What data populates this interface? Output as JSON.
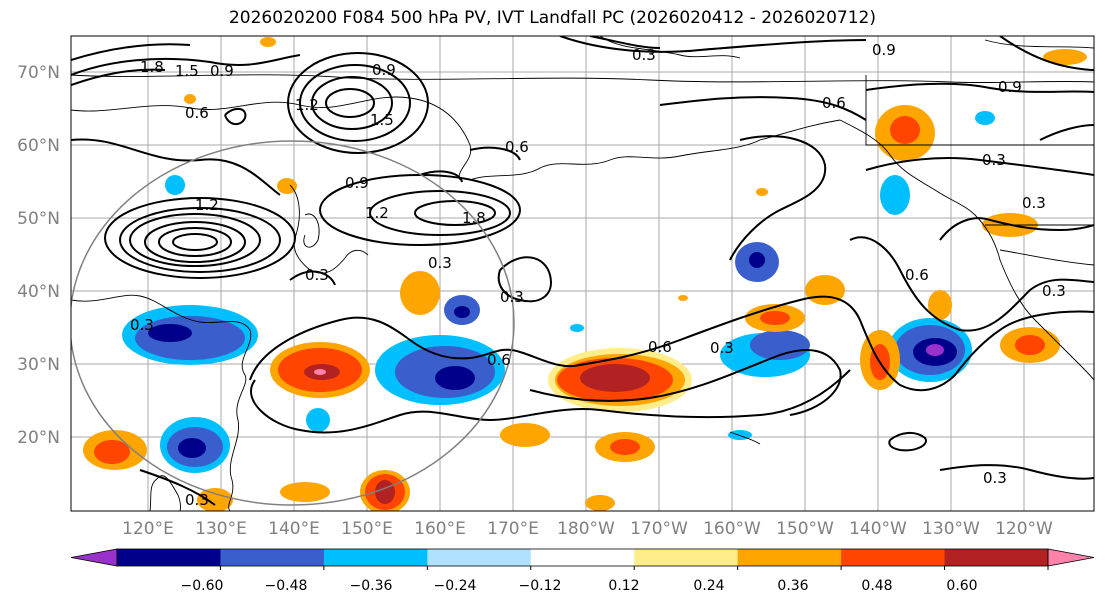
{
  "title": "2026020200 F084 500 hPa PV, IVT Landfall PC (2026020412 - 2026020712)",
  "map": {
    "lat_labels": [
      "70°N",
      "60°N",
      "50°N",
      "40°N",
      "30°N",
      "20°N"
    ],
    "lon_labels": [
      "120°E",
      "130°E",
      "140°E",
      "150°E",
      "160°E",
      "170°E",
      "180°W",
      "170°W",
      "160°W",
      "150°W",
      "140°W",
      "130°W",
      "120°W"
    ],
    "contour_labels": [
      "1.8",
      "1.5",
      "0.9",
      "0.6",
      "1.2",
      "0.9",
      "1.5",
      "0.3",
      "0.9",
      "0.6",
      "0.9",
      "0.6",
      "0.9",
      "1.2",
      "1.2",
      "0.3",
      "1.8",
      "0.3",
      "0.3",
      "0.3",
      "0.6",
      "0.3",
      "0.6",
      "0.3",
      "0.6",
      "0.3",
      "0.3",
      "0.3",
      "0.3"
    ]
  },
  "colorbar": {
    "ticks": [
      "−0.60",
      "−0.48",
      "−0.36",
      "−0.24",
      "−0.12",
      "0.12",
      "0.24",
      "0.36",
      "0.48",
      "0.60"
    ],
    "colors": [
      "#9932cc",
      "#00008b",
      "#3a5fcd",
      "#00bfff",
      "#b0e2ff",
      "#ffffff",
      "#ffec8b",
      "#ffa500",
      "#ff4500",
      "#b22222",
      "#ff82ab"
    ]
  },
  "colors": {
    "neg_low": "#b0e2ff",
    "neg_mid": "#00bfff",
    "neg_strong": "#3a5fcd",
    "neg_max": "#00008b",
    "neg_extreme": "#9932cc",
    "pos_low": "#ffec8b",
    "pos_mid": "#ffa500",
    "pos_strong": "#ff4500",
    "pos_max": "#b22222",
    "pos_extreme": "#ff82ab"
  }
}
